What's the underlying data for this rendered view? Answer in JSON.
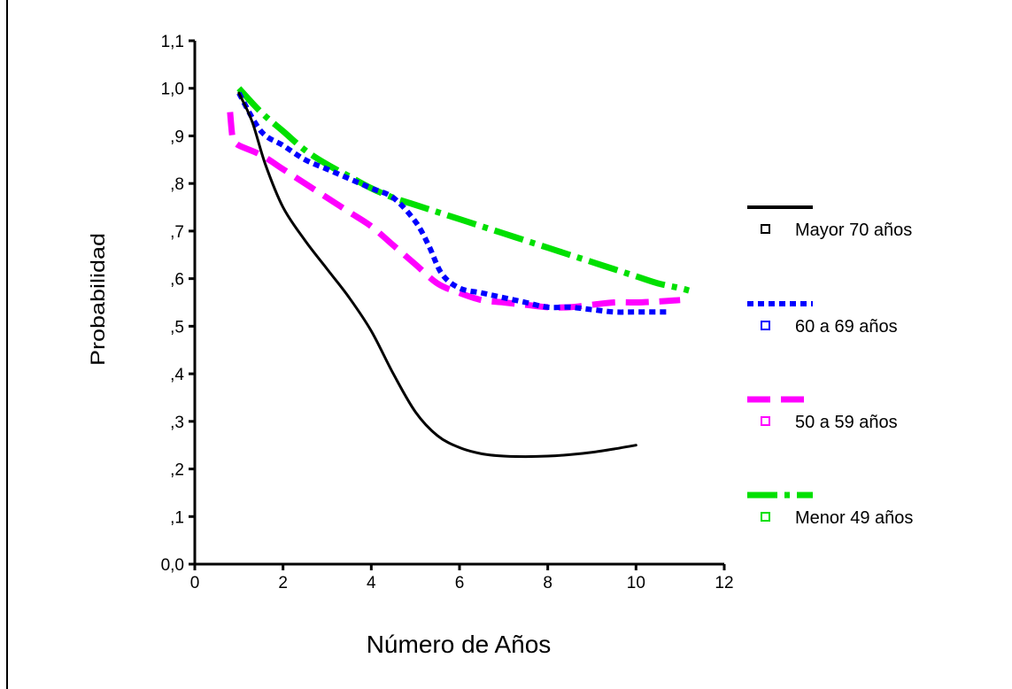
{
  "chart_data": {
    "type": "line",
    "title": "",
    "xlabel": "Número de Años",
    "ylabel": "Probabilidad",
    "xlim": [
      0,
      12
    ],
    "ylim": [
      0,
      1.1
    ],
    "x_ticks": [
      0,
      2,
      4,
      6,
      8,
      10,
      12
    ],
    "x_tick_labels": [
      "0",
      "2",
      "4",
      "6",
      "8",
      "10",
      "12"
    ],
    "y_ticks": [
      0,
      0.1,
      0.2,
      0.3,
      0.4,
      0.5,
      0.6,
      0.7,
      0.8,
      0.9,
      1.0,
      1.1
    ],
    "y_tick_labels": [
      "0,0",
      ",1",
      ",2",
      ",3",
      ",4",
      ",5",
      ",6",
      ",7",
      ",8",
      ",9",
      "1,0",
      "1,1"
    ],
    "grid": false,
    "legend_position": "right",
    "series": [
      {
        "name": "Mayor 70 años",
        "color": "#000000",
        "style": "solid",
        "x": [
          1.0,
          1.3,
          1.6,
          2.0,
          2.5,
          3.0,
          3.5,
          4.0,
          4.5,
          5.0,
          5.5,
          6.0,
          6.5,
          7.0,
          7.5,
          8.0,
          8.5,
          9.0,
          9.5,
          10.0
        ],
        "y": [
          0.99,
          0.93,
          0.84,
          0.75,
          0.68,
          0.62,
          0.56,
          0.49,
          0.4,
          0.32,
          0.27,
          0.245,
          0.232,
          0.227,
          0.226,
          0.227,
          0.23,
          0.235,
          0.242,
          0.25
        ]
      },
      {
        "name": "60 a 69 años",
        "color": "#0000ff",
        "style": "dotted",
        "x": [
          1.0,
          1.5,
          2.0,
          2.5,
          3.0,
          3.5,
          4.0,
          4.5,
          5.0,
          5.3,
          5.6,
          6.0,
          6.5,
          7.0,
          7.5,
          8.0,
          8.5,
          9.0,
          9.5,
          10.0,
          10.7
        ],
        "y": [
          0.99,
          0.91,
          0.88,
          0.85,
          0.83,
          0.81,
          0.79,
          0.77,
          0.72,
          0.67,
          0.61,
          0.58,
          0.57,
          0.56,
          0.55,
          0.54,
          0.54,
          0.535,
          0.53,
          0.53,
          0.53
        ]
      },
      {
        "name": "50 a 59 años",
        "color": "#ff00ff",
        "style": "dashed",
        "x": [
          0.8,
          0.85,
          0.9,
          1.0,
          1.5,
          2.0,
          2.5,
          3.0,
          3.5,
          4.0,
          4.5,
          5.0,
          5.5,
          6.0,
          6.5,
          7.0,
          7.5,
          8.0,
          8.5,
          9.0,
          9.5,
          10.0,
          10.5,
          11.0
        ],
        "y": [
          0.95,
          0.9,
          0.89,
          0.88,
          0.86,
          0.83,
          0.8,
          0.77,
          0.74,
          0.71,
          0.67,
          0.63,
          0.59,
          0.57,
          0.555,
          0.55,
          0.545,
          0.54,
          0.54,
          0.545,
          0.55,
          0.55,
          0.552,
          0.555
        ]
      },
      {
        "name": "Menor 49 años",
        "color": "#00e000",
        "style": "dashdot",
        "x": [
          1.0,
          1.5,
          2.0,
          2.5,
          3.0,
          3.5,
          4.0,
          4.5,
          5.0,
          5.5,
          6.0,
          6.5,
          7.0,
          7.5,
          8.0,
          8.5,
          9.0,
          9.5,
          10.0,
          10.5,
          11.0,
          11.2
        ],
        "y": [
          1.0,
          0.95,
          0.91,
          0.87,
          0.84,
          0.815,
          0.79,
          0.77,
          0.755,
          0.74,
          0.725,
          0.71,
          0.695,
          0.68,
          0.665,
          0.65,
          0.635,
          0.62,
          0.605,
          0.59,
          0.58,
          0.575
        ]
      }
    ]
  }
}
